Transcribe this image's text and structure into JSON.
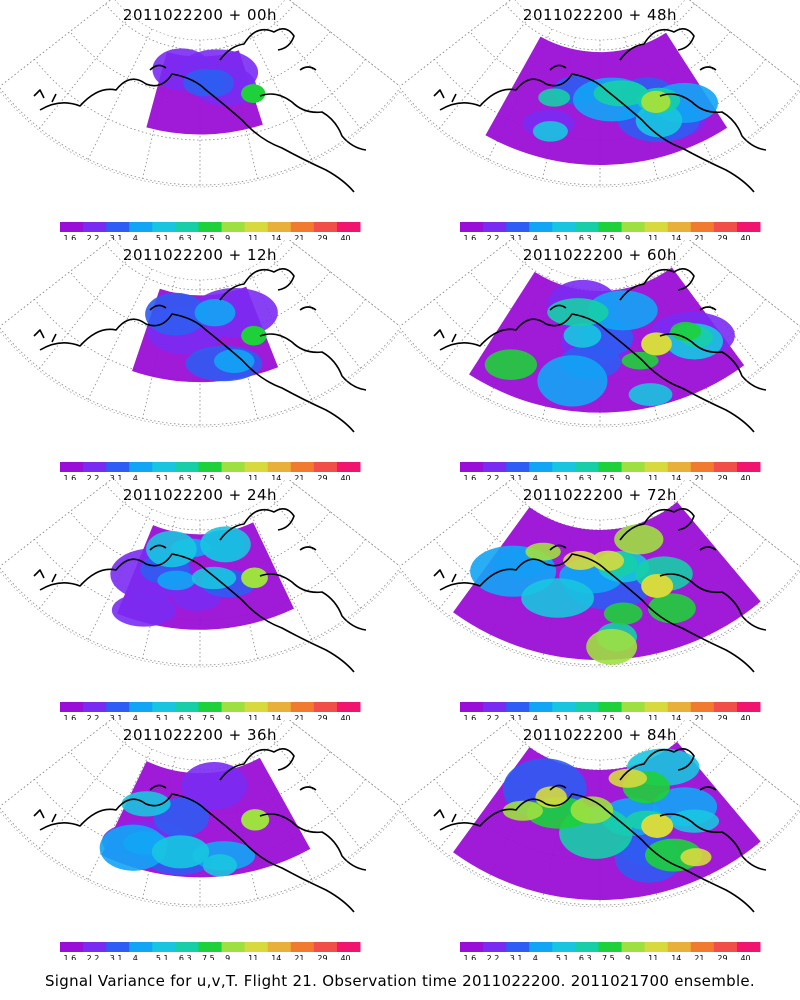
{
  "caption": "Signal Variance for u,v,T. Flight 21. Observation time 2011022200. 2011021700 ensemble.",
  "colors": {
    "coast": "#000000",
    "grid": "#888888",
    "scale": [
      "#9a0fd6",
      "#7a2bf2",
      "#2f5cf2",
      "#12a5f5",
      "#18c5e0",
      "#16cfa8",
      "#1ed03a",
      "#9ee040",
      "#d6da3e",
      "#e8b03a",
      "#f07a2e",
      "#f04e48",
      "#f0146e"
    ]
  },
  "chart_data": [
    {
      "type": "heatmap",
      "title": "2011022200 + 00h",
      "lead_hours": 0,
      "colorbar_ticks": [
        "1.6",
        "2.2",
        "3.1",
        "4",
        "5.1",
        "6.3",
        "7.5",
        "9",
        "11",
        "14",
        "21",
        "29",
        "40"
      ]
    },
    {
      "type": "heatmap",
      "title": "2011022200 + 48h",
      "lead_hours": 48,
      "colorbar_ticks": [
        "1.6",
        "2.2",
        "3.1",
        "4",
        "5.1",
        "6.3",
        "7.5",
        "9",
        "11",
        "14",
        "21",
        "29",
        "40"
      ]
    },
    {
      "type": "heatmap",
      "title": "2011022200 + 12h",
      "lead_hours": 12,
      "colorbar_ticks": [
        "1.6",
        "2.2",
        "3.1",
        "4",
        "5.1",
        "6.3",
        "7.5",
        "9",
        "11",
        "14",
        "21",
        "29",
        "40"
      ]
    },
    {
      "type": "heatmap",
      "title": "2011022200 + 60h",
      "lead_hours": 60,
      "colorbar_ticks": [
        "1.6",
        "2.2",
        "3.1",
        "4",
        "5.1",
        "6.3",
        "7.5",
        "9",
        "11",
        "14",
        "21",
        "29",
        "40"
      ]
    },
    {
      "type": "heatmap",
      "title": "2011022200 + 24h",
      "lead_hours": 24,
      "colorbar_ticks": [
        "1.6",
        "2.2",
        "3.1",
        "4",
        "5.1",
        "6.3",
        "7.5",
        "9",
        "11",
        "14",
        "21",
        "29",
        "40"
      ]
    },
    {
      "type": "heatmap",
      "title": "2011022200 + 72h",
      "lead_hours": 72,
      "colorbar_ticks": [
        "1.6",
        "2.2",
        "3.1",
        "4",
        "5.1",
        "6.3",
        "7.5",
        "9",
        "11",
        "14",
        "21",
        "29",
        "40"
      ]
    },
    {
      "type": "heatmap",
      "title": "2011022200 + 36h",
      "lead_hours": 36,
      "colorbar_ticks": [
        "1.6",
        "2.2",
        "3.1",
        "4",
        "5.1",
        "6.3",
        "7.5",
        "9",
        "11",
        "14",
        "21",
        "29",
        "40"
      ]
    },
    {
      "type": "heatmap",
      "title": "2011022200 + 84h",
      "lead_hours": 84,
      "colorbar_ticks": [
        "1.6",
        "2.2",
        "3.1",
        "4",
        "5.1",
        "6.3",
        "7.5",
        "9",
        "11",
        "14",
        "21",
        "29",
        "40"
      ]
    }
  ]
}
